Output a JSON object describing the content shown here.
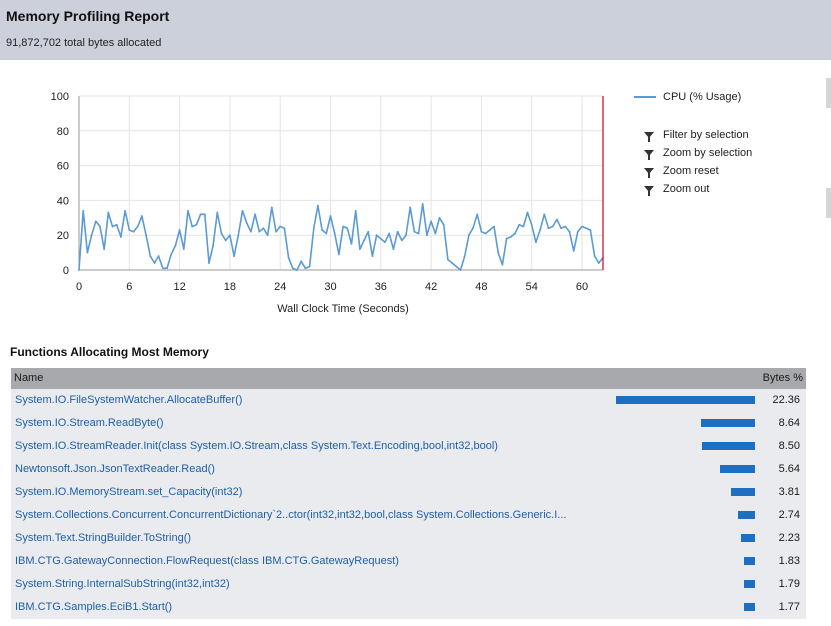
{
  "report": {
    "title": "Memory Profiling Report",
    "subtitle": "91,872,702 total bytes allocated"
  },
  "chart_data": {
    "type": "line",
    "xlabel": "Wall Clock Time (Seconds)",
    "ylabel": "",
    "xlim": [
      0,
      62.5
    ],
    "ylim": [
      0,
      100
    ],
    "x_ticks": [
      0,
      6,
      12,
      18,
      24,
      30,
      36,
      42,
      48,
      54,
      60
    ],
    "y_ticks": [
      0,
      20,
      40,
      60,
      80,
      100
    ],
    "grid": true,
    "legend_position": "right",
    "series": [
      {
        "name": "CPU (% Usage)",
        "color": "#5b9bd5",
        "x": [
          0,
          0.5,
          1,
          1.5,
          2,
          2.5,
          3,
          3.5,
          4,
          4.5,
          5,
          5.5,
          6,
          6.5,
          7,
          7.5,
          8,
          8.5,
          9,
          9.5,
          10,
          10.5,
          11,
          11.5,
          12,
          12.5,
          13,
          13.5,
          14,
          14.5,
          15,
          15.5,
          16,
          16.5,
          17,
          17.5,
          18,
          18.5,
          19,
          19.5,
          20,
          20.5,
          21,
          21.5,
          22,
          22.5,
          23,
          23.5,
          24,
          24.5,
          25,
          25.5,
          26,
          26.5,
          27,
          27.5,
          28,
          28.5,
          29,
          29.5,
          30,
          30.5,
          31,
          31.5,
          32,
          32.5,
          33,
          33.5,
          34,
          34.5,
          35,
          35.5,
          36,
          36.5,
          37,
          37.5,
          38,
          38.5,
          39,
          39.5,
          40,
          40.5,
          41,
          41.5,
          42,
          42.5,
          43,
          43.5,
          44,
          44.5,
          45,
          45.5,
          46,
          46.5,
          47,
          47.5,
          48,
          48.5,
          49,
          49.5,
          50,
          50.5,
          51,
          51.5,
          52,
          52.5,
          53,
          53.5,
          54,
          54.5,
          55,
          55.5,
          56,
          56.5,
          57,
          57.5,
          58,
          58.5,
          59,
          59.5,
          60,
          60.5,
          61,
          61.5,
          62,
          62.5
        ],
        "values": [
          0,
          34,
          10,
          20,
          28,
          25,
          12,
          33,
          25,
          26,
          19,
          34,
          23,
          22,
          25,
          31,
          20,
          8,
          4,
          8,
          1,
          1,
          9,
          14,
          23,
          12,
          34,
          25,
          26,
          32,
          32,
          4,
          14,
          33,
          21,
          17,
          20,
          8,
          20,
          34,
          27,
          22,
          32,
          22,
          24,
          20,
          36,
          22,
          25,
          24,
          7,
          1,
          0,
          5,
          1,
          2,
          24,
          37,
          23,
          21,
          31,
          21,
          9,
          25,
          24,
          15,
          34,
          12,
          17,
          22,
          8,
          20,
          18,
          16,
          21,
          12,
          22,
          17,
          20,
          36,
          22,
          21,
          38,
          20,
          28,
          21,
          30,
          26,
          6,
          4,
          2,
          0,
          8,
          20,
          24,
          32,
          22,
          21,
          23,
          25,
          10,
          3,
          18,
          19,
          21,
          26,
          25,
          33,
          26,
          16,
          23,
          32,
          24,
          25,
          29,
          24,
          25,
          22,
          11,
          22,
          25,
          24,
          23,
          8,
          4,
          7
        ]
      }
    ]
  },
  "chart_actions": [
    {
      "label": "Filter by selection",
      "icon": "filter-selection-icon"
    },
    {
      "label": "Zoom by selection",
      "icon": "zoom-selection-icon"
    },
    {
      "label": "Zoom reset",
      "icon": "zoom-reset-icon"
    },
    {
      "label": "Zoom out",
      "icon": "zoom-out-icon"
    }
  ],
  "functions": {
    "title": "Functions Allocating Most Memory",
    "columns": {
      "name": "Name",
      "bytes": "Bytes %"
    },
    "bar_color": "#1f6fc0",
    "rows": [
      {
        "name": "System.IO.FileSystemWatcher.AllocateBuffer()",
        "pct": "22.36",
        "value": 22.36
      },
      {
        "name": "System.IO.Stream.ReadByte()",
        "pct": "8.64",
        "value": 8.64
      },
      {
        "name": "System.IO.StreamReader.Init(class System.IO.Stream,class System.Text.Encoding,bool,int32,bool)",
        "pct": "8.50",
        "value": 8.5
      },
      {
        "name": "Newtonsoft.Json.JsonTextReader.Read()",
        "pct": "5.64",
        "value": 5.64
      },
      {
        "name": "System.IO.MemoryStream.set_Capacity(int32)",
        "pct": "3.81",
        "value": 3.81
      },
      {
        "name": "System.Collections.Concurrent.ConcurrentDictionary`2..ctor(int32,int32,bool,class System.Collections.Generic.I...",
        "pct": "2.74",
        "value": 2.74
      },
      {
        "name": "System.Text.StringBuilder.ToString()",
        "pct": "2.23",
        "value": 2.23
      },
      {
        "name": "IBM.CTG.GatewayConnection.FlowRequest(class IBM.CTG.GatewayRequest)",
        "pct": "1.83",
        "value": 1.83
      },
      {
        "name": "System.String.InternalSubString(int32,int32)",
        "pct": "1.79",
        "value": 1.79
      },
      {
        "name": "IBM.CTG.Samples.EciB1.Start()",
        "pct": "1.77",
        "value": 1.77
      }
    ]
  }
}
